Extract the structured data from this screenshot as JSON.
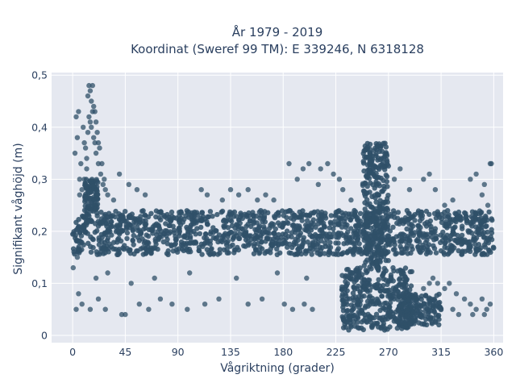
{
  "chart_data": {
    "type": "scatter",
    "title_line1": "År 1979 - 2019",
    "title_line2": "Koordinat (Sweref 99 TM): E 339246, N 6318128",
    "xlabel": "Vågriktning (grader)",
    "ylabel": "Signifikant våghöjd (m)",
    "xlim": [
      -18,
      368
    ],
    "ylim": [
      -0.014,
      0.505
    ],
    "x_ticks": [
      0,
      45,
      90,
      135,
      180,
      225,
      270,
      315,
      360
    ],
    "y_ticks": [
      0,
      0.1,
      0.2,
      0.3,
      0.4,
      0.5
    ],
    "y_tick_labels": [
      "0",
      "0,1",
      "0,2",
      "0,3",
      "0,4",
      "0,5"
    ],
    "grid": true,
    "marker_color": "#2f5068",
    "plot_background": "#e5e8f0",
    "series": [
      {
        "values": [
          [
            2,
            0.35
          ],
          [
            3,
            0.42
          ],
          [
            5,
            0.43
          ],
          [
            4,
            0.38
          ],
          [
            7,
            0.33
          ],
          [
            6,
            0.3
          ],
          [
            9,
            0.4
          ],
          [
            10,
            0.37
          ],
          [
            12,
            0.34
          ],
          [
            13,
            0.46
          ],
          [
            14,
            0.48
          ],
          [
            15,
            0.47
          ],
          [
            16,
            0.45
          ],
          [
            17,
            0.48
          ],
          [
            18,
            0.44
          ],
          [
            19,
            0.43
          ],
          [
            20,
            0.41
          ],
          [
            21,
            0.39
          ],
          [
            22,
            0.37
          ],
          [
            23,
            0.36
          ],
          [
            25,
            0.33
          ],
          [
            24,
            0.31
          ],
          [
            27,
            0.3
          ],
          [
            14,
            0.42
          ],
          [
            16,
            0.4
          ],
          [
            18,
            0.38
          ],
          [
            20,
            0.35
          ],
          [
            12,
            0.32
          ],
          [
            10,
            0.3
          ],
          [
            8,
            0.28
          ],
          [
            6,
            0.27
          ],
          [
            11,
            0.36
          ],
          [
            13,
            0.39
          ],
          [
            15,
            0.41
          ],
          [
            17,
            0.43
          ],
          [
            19,
            0.37
          ],
          [
            22,
            0.33
          ],
          [
            26,
            0.29
          ],
          [
            28,
            0.28
          ],
          [
            30,
            0.27
          ],
          [
            40,
            0.31
          ],
          [
            48,
            0.29
          ],
          [
            55,
            0.28
          ],
          [
            62,
            0.27
          ],
          [
            35,
            0.26
          ],
          [
            3,
            0.05
          ],
          [
            8,
            0.06
          ],
          [
            15,
            0.05
          ],
          [
            22,
            0.07
          ],
          [
            28,
            0.05
          ],
          [
            42,
            0.04
          ],
          [
            45,
            0.04
          ],
          [
            57,
            0.06
          ],
          [
            65,
            0.05
          ],
          [
            75,
            0.07
          ],
          [
            85,
            0.06
          ],
          [
            98,
            0.05
          ],
          [
            113,
            0.06
          ],
          [
            125,
            0.07
          ],
          [
            150,
            0.06
          ],
          [
            162,
            0.07
          ],
          [
            181,
            0.06
          ],
          [
            188,
            0.05
          ],
          [
            198,
            0.06
          ],
          [
            205,
            0.05
          ],
          [
            30,
            0.12
          ],
          [
            50,
            0.1
          ],
          [
            70,
            0.11
          ],
          [
            100,
            0.12
          ],
          [
            140,
            0.11
          ],
          [
            175,
            0.12
          ],
          [
            200,
            0.11
          ],
          [
            0.5,
            0.13
          ],
          [
            4,
            0.15
          ],
          [
            5,
            0.08
          ],
          [
            20,
            0.11
          ],
          [
            110,
            0.28
          ],
          [
            115,
            0.27
          ],
          [
            128,
            0.26
          ],
          [
            135,
            0.28
          ],
          [
            142,
            0.27
          ],
          [
            150,
            0.28
          ],
          [
            158,
            0.26
          ],
          [
            165,
            0.27
          ],
          [
            172,
            0.26
          ],
          [
            185,
            0.33
          ],
          [
            192,
            0.3
          ],
          [
            197,
            0.32
          ],
          [
            202,
            0.33
          ],
          [
            210,
            0.29
          ],
          [
            212,
            0.32
          ],
          [
            218,
            0.33
          ],
          [
            223,
            0.31
          ],
          [
            228,
            0.3
          ],
          [
            231,
            0.28
          ],
          [
            238,
            0.26
          ],
          [
            275,
            0.3
          ],
          [
            280,
            0.32
          ],
          [
            288,
            0.28
          ],
          [
            300,
            0.3
          ],
          [
            305,
            0.31
          ],
          [
            310,
            0.28
          ],
          [
            318,
            0.25
          ],
          [
            325,
            0.26
          ],
          [
            340,
            0.3
          ],
          [
            345,
            0.31
          ],
          [
            357,
            0.33
          ],
          [
            358,
            0.33
          ],
          [
            350,
            0.27
          ],
          [
            355,
            0.25
          ],
          [
            352,
            0.29
          ],
          [
            300,
            0.09
          ],
          [
            305,
            0.1
          ],
          [
            308,
            0.11
          ],
          [
            312,
            0.1
          ],
          [
            318,
            0.09
          ],
          [
            322,
            0.1
          ],
          [
            328,
            0.08
          ],
          [
            335,
            0.07
          ],
          [
            340,
            0.06
          ],
          [
            345,
            0.05
          ],
          [
            350,
            0.07
          ],
          [
            354,
            0.05
          ],
          [
            357,
            0.06
          ],
          [
            342,
            0.04
          ],
          [
            352,
            0.04
          ],
          [
            325,
            0.05
          ],
          [
            330,
            0.04
          ]
        ]
      }
    ],
    "dense_regions": [
      {
        "x_range": [
          0,
          360
        ],
        "y_range": [
          0.155,
          0.24
        ]
      },
      {
        "x_range": [
          248,
          270
        ],
        "y_range": [
          0.13,
          0.37
        ]
      },
      {
        "x_range": [
          230,
          290
        ],
        "y_range": [
          0.01,
          0.13
        ]
      },
      {
        "x_range": [
          278,
          315
        ],
        "y_range": [
          0.02,
          0.08
        ]
      },
      {
        "x_range": [
          10,
          22
        ],
        "y_range": [
          0.24,
          0.3
        ]
      }
    ]
  }
}
